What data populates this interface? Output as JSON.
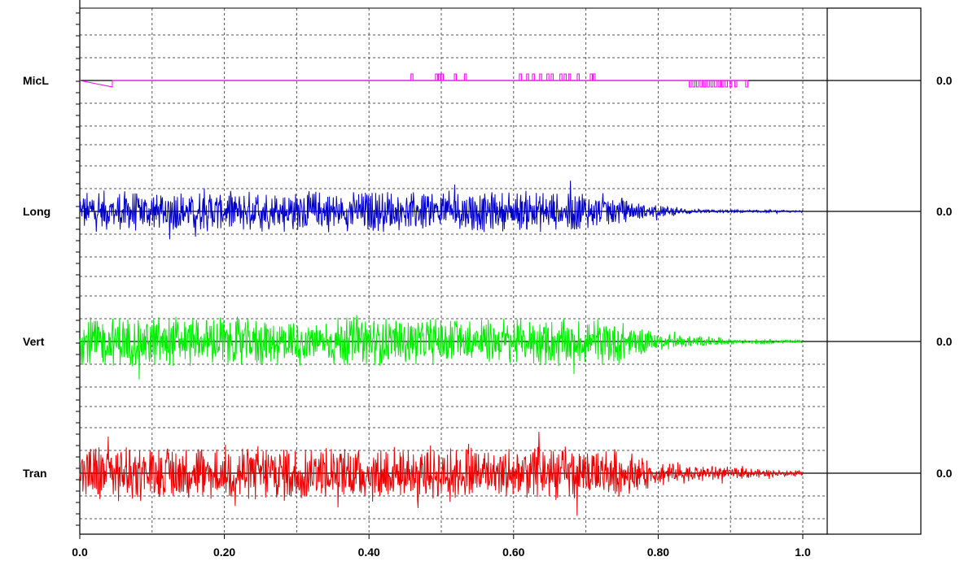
{
  "chart_data": {
    "type": "line",
    "x_ticks": [
      "0.0",
      "0.20",
      "0.40",
      "0.60",
      "0.80",
      "1.0"
    ],
    "x_tick_values": [
      0.0,
      0.2,
      0.4,
      0.6,
      0.8,
      1.0
    ],
    "xlim": [
      0.0,
      1.0
    ],
    "grid": true,
    "channels": [
      {
        "name": "MicL",
        "color": "#ff00ff",
        "baseline_value": "0.0",
        "pulse_times": [
          0.458,
          0.492,
          0.496,
          0.5,
          0.518,
          0.532,
          0.608,
          0.618,
          0.626,
          0.636,
          0.646,
          0.652,
          0.664,
          0.67,
          0.676,
          0.688,
          0.706,
          0.71
        ],
        "neg_pulse_times": [
          0.843,
          0.848,
          0.853,
          0.858,
          0.863,
          0.868,
          0.873,
          0.878,
          0.883,
          0.888,
          0.893,
          0.899,
          0.906,
          0.921
        ]
      },
      {
        "name": "Long",
        "color": "#0000cc",
        "baseline_value": "0.0",
        "envelope": [
          [
            0.0,
            1.0
          ],
          [
            0.7,
            1.0
          ],
          [
            0.78,
            0.35
          ],
          [
            0.86,
            0.1
          ],
          [
            1.0,
            0.05
          ]
        ]
      },
      {
        "name": "Vert",
        "color": "#00ee00",
        "baseline_value": "0.0",
        "envelope": [
          [
            0.0,
            1.0
          ],
          [
            0.74,
            0.9
          ],
          [
            0.8,
            0.35
          ],
          [
            0.9,
            0.12
          ],
          [
            1.0,
            0.06
          ]
        ]
      },
      {
        "name": "Tran",
        "color": "#ee0000",
        "baseline_value": "0.0",
        "envelope": [
          [
            0.0,
            1.0
          ],
          [
            0.73,
            0.95
          ],
          [
            0.8,
            0.45
          ],
          [
            0.9,
            0.22
          ],
          [
            1.0,
            0.08
          ]
        ]
      }
    ]
  }
}
